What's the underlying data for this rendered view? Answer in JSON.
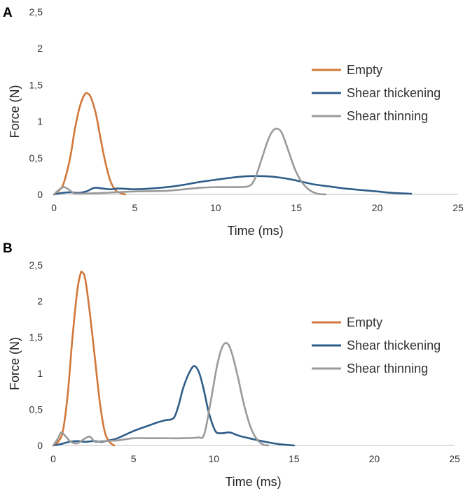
{
  "chart_data": [
    {
      "type": "line",
      "panel_label": "A",
      "title": "",
      "xlabel": "Time (ms)",
      "ylabel": "Force (N)",
      "xlim": [
        0,
        25
      ],
      "ylim": [
        0,
        2.5
      ],
      "x_ticks": [
        "0",
        "5",
        "10",
        "15",
        "20",
        "25"
      ],
      "y_ticks": [
        "0",
        "0,5",
        "1",
        "1,5",
        "2",
        "2,5"
      ],
      "grid": false,
      "legend_position": "right",
      "series": [
        {
          "name": "Empty",
          "color": "#d2773a",
          "points": [
            [
              0,
              0
            ],
            [
              0.3,
              0.05
            ],
            [
              0.6,
              0.15
            ],
            [
              1.0,
              0.5
            ],
            [
              1.3,
              0.9
            ],
            [
              1.6,
              1.2
            ],
            [
              1.9,
              1.37
            ],
            [
              2.1,
              1.38
            ],
            [
              2.3,
              1.32
            ],
            [
              2.6,
              1.1
            ],
            [
              2.9,
              0.75
            ],
            [
              3.2,
              0.42
            ],
            [
              3.5,
              0.18
            ],
            [
              3.8,
              0.06
            ],
            [
              4.1,
              0.02
            ],
            [
              4.4,
              0
            ]
          ]
        },
        {
          "name": "Shear thickening",
          "color": "#2f5d8a",
          "points": [
            [
              0,
              0
            ],
            [
              0.5,
              0.02
            ],
            [
              1.0,
              0.03
            ],
            [
              1.5,
              0.02
            ],
            [
              2.0,
              0.04
            ],
            [
              2.5,
              0.09
            ],
            [
              3.0,
              0.08
            ],
            [
              3.5,
              0.07
            ],
            [
              4.0,
              0.08
            ],
            [
              5,
              0.07
            ],
            [
              6,
              0.08
            ],
            [
              7,
              0.1
            ],
            [
              8,
              0.13
            ],
            [
              9,
              0.17
            ],
            [
              10,
              0.2
            ],
            [
              11,
              0.23
            ],
            [
              12,
              0.25
            ],
            [
              13,
              0.25
            ],
            [
              14,
              0.23
            ],
            [
              15,
              0.19
            ],
            [
              16,
              0.14
            ],
            [
              17,
              0.11
            ],
            [
              18,
              0.08
            ],
            [
              19,
              0.06
            ],
            [
              20,
              0.04
            ],
            [
              21,
              0.02
            ],
            [
              22.1,
              0.01
            ]
          ]
        },
        {
          "name": "Shear thinning",
          "color": "#9a9a9a",
          "points": [
            [
              0,
              0
            ],
            [
              0.3,
              0.06
            ],
            [
              0.6,
              0.1
            ],
            [
              0.9,
              0.07
            ],
            [
              1.2,
              0.02
            ],
            [
              1.5,
              0.01
            ],
            [
              3,
              0.02
            ],
            [
              5,
              0.04
            ],
            [
              7,
              0.05
            ],
            [
              9,
              0.09
            ],
            [
              10,
              0.1
            ],
            [
              11,
              0.1
            ],
            [
              12,
              0.11
            ],
            [
              12.4,
              0.2
            ],
            [
              12.8,
              0.45
            ],
            [
              13.2,
              0.72
            ],
            [
              13.5,
              0.86
            ],
            [
              13.8,
              0.9
            ],
            [
              14.1,
              0.84
            ],
            [
              14.5,
              0.6
            ],
            [
              14.9,
              0.35
            ],
            [
              15.3,
              0.18
            ],
            [
              15.8,
              0.06
            ],
            [
              16.3,
              0.01
            ],
            [
              16.8,
              0
            ]
          ]
        }
      ]
    },
    {
      "type": "line",
      "panel_label": "B",
      "title": "",
      "xlabel": "Time (ms)",
      "ylabel": "Force (N)",
      "xlim": [
        0,
        25
      ],
      "ylim": [
        0,
        2.5
      ],
      "x_ticks": [
        "0",
        "5",
        "10",
        "15",
        "20",
        "25"
      ],
      "y_ticks": [
        "0",
        "0,5",
        "1",
        "1,5",
        "2",
        "2,5"
      ],
      "grid": false,
      "legend_position": "right",
      "series": [
        {
          "name": "Empty",
          "color": "#d2773a",
          "points": [
            [
              0,
              0
            ],
            [
              0.3,
              0.05
            ],
            [
              0.6,
              0.2
            ],
            [
              0.9,
              0.7
            ],
            [
              1.2,
              1.5
            ],
            [
              1.5,
              2.15
            ],
            [
              1.7,
              2.38
            ],
            [
              1.8,
              2.4
            ],
            [
              2.0,
              2.3
            ],
            [
              2.3,
              1.8
            ],
            [
              2.6,
              1.2
            ],
            [
              2.9,
              0.6
            ],
            [
              3.2,
              0.2
            ],
            [
              3.5,
              0.05
            ],
            [
              3.8,
              0
            ]
          ]
        },
        {
          "name": "Shear thickening",
          "color": "#2f5d8a",
          "points": [
            [
              0,
              0
            ],
            [
              0.5,
              0.02
            ],
            [
              1.0,
              0.05
            ],
            [
              1.5,
              0.06
            ],
            [
              2.0,
              0.05
            ],
            [
              2.5,
              0.06
            ],
            [
              3,
              0.05
            ],
            [
              3.5,
              0.07
            ],
            [
              4,
              0.1
            ],
            [
              5,
              0.2
            ],
            [
              6,
              0.28
            ],
            [
              6.5,
              0.32
            ],
            [
              7,
              0.35
            ],
            [
              7.5,
              0.38
            ],
            [
              7.8,
              0.55
            ],
            [
              8.1,
              0.8
            ],
            [
              8.5,
              1.02
            ],
            [
              8.8,
              1.1
            ],
            [
              9.1,
              1.0
            ],
            [
              9.4,
              0.75
            ],
            [
              9.7,
              0.45
            ],
            [
              10.1,
              0.2
            ],
            [
              10.5,
              0.17
            ],
            [
              11,
              0.18
            ],
            [
              11.5,
              0.14
            ],
            [
              12,
              0.11
            ],
            [
              13,
              0.06
            ],
            [
              14,
              0.02
            ],
            [
              15,
              0
            ]
          ]
        },
        {
          "name": "Shear thinning",
          "color": "#9a9a9a",
          "points": [
            [
              0,
              0
            ],
            [
              0.3,
              0.1
            ],
            [
              0.5,
              0.18
            ],
            [
              0.8,
              0.12
            ],
            [
              1.1,
              0.05
            ],
            [
              1.5,
              0.03
            ],
            [
              2.0,
              0.1
            ],
            [
              2.3,
              0.12
            ],
            [
              2.6,
              0.05
            ],
            [
              3.0,
              0.06
            ],
            [
              4,
              0.07
            ],
            [
              5,
              0.1
            ],
            [
              6,
              0.1
            ],
            [
              7,
              0.1
            ],
            [
              8,
              0.1
            ],
            [
              9,
              0.11
            ],
            [
              9.4,
              0.15
            ],
            [
              9.8,
              0.6
            ],
            [
              10.2,
              1.1
            ],
            [
              10.5,
              1.35
            ],
            [
              10.8,
              1.42
            ],
            [
              11.1,
              1.3
            ],
            [
              11.5,
              0.95
            ],
            [
              11.9,
              0.55
            ],
            [
              12.3,
              0.25
            ],
            [
              12.7,
              0.08
            ],
            [
              13.1,
              0.01
            ],
            [
              13.4,
              0
            ]
          ]
        }
      ]
    }
  ]
}
